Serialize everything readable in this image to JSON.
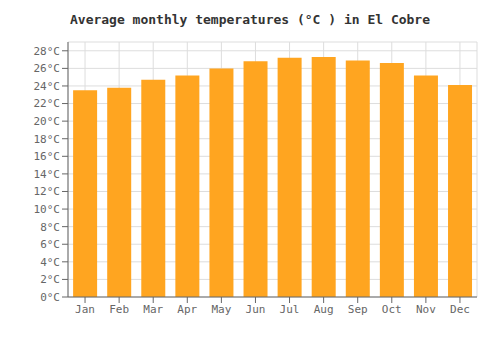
{
  "chart_data": {
    "type": "bar",
    "title": "Average monthly temperatures (°C ) in El Cobre",
    "categories": [
      "Jan",
      "Feb",
      "Mar",
      "Apr",
      "May",
      "Jun",
      "Jul",
      "Aug",
      "Sep",
      "Oct",
      "Nov",
      "Dec"
    ],
    "values": [
      23.5,
      23.8,
      24.7,
      25.2,
      26.0,
      26.8,
      27.2,
      27.3,
      26.9,
      26.6,
      25.2,
      24.1
    ],
    "color": "#FFA520",
    "ylim": [
      0,
      29
    ],
    "yticks": [
      {
        "value": 0,
        "label": "0°C"
      },
      {
        "value": 2,
        "label": "2°C"
      },
      {
        "value": 4,
        "label": "4°C"
      },
      {
        "value": 6,
        "label": "6°C"
      },
      {
        "value": 8,
        "label": "8°C"
      },
      {
        "value": 10,
        "label": "10°C"
      },
      {
        "value": 12,
        "label": "12°C"
      },
      {
        "value": 14,
        "label": "14°C"
      },
      {
        "value": 16,
        "label": "16°C"
      },
      {
        "value": 18,
        "label": "18°C"
      },
      {
        "value": 20,
        "label": "20°C"
      },
      {
        "value": 22,
        "label": "22°C"
      },
      {
        "value": 24,
        "label": "24°C"
      },
      {
        "value": 26,
        "label": "26°C"
      },
      {
        "value": 28,
        "label": "28°C"
      }
    ],
    "grid": true
  }
}
